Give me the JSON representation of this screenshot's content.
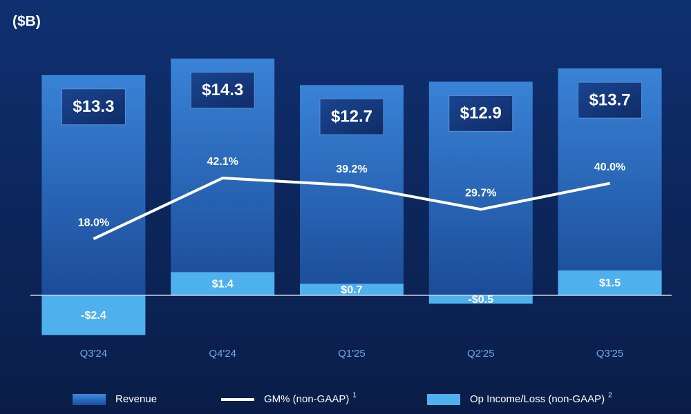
{
  "chart_data": {
    "type": "bar-line",
    "title": "($B)",
    "categories": [
      "Q3'24",
      "Q4'24",
      "Q1'25",
      "Q2'25",
      "Q3'25"
    ],
    "series": [
      {
        "name": "Revenue",
        "type": "bar",
        "color": "#2a6fc9",
        "values": [
          13.3,
          14.3,
          12.7,
          12.9,
          13.7
        ],
        "value_labels": [
          "$13.3",
          "$14.3",
          "$12.7",
          "$12.9",
          "$13.7"
        ]
      },
      {
        "name": "GM% (non-GAAP)",
        "footnote": "1",
        "type": "line",
        "axis": "y2",
        "color": "#ffffff",
        "values": [
          18.0,
          42.1,
          39.2,
          29.7,
          40.0
        ],
        "value_labels": [
          "18.0%",
          "42.1%",
          "39.2%",
          "29.7%",
          "40.0%"
        ]
      },
      {
        "name": "Op Income/Loss (non-GAAP)",
        "footnote": "2",
        "type": "bar",
        "color": "#4fb0ee",
        "values": [
          -2.4,
          1.4,
          0.7,
          -0.5,
          1.5
        ],
        "value_labels": [
          "-$2.4",
          "$1.4",
          "$0.7",
          "-$0.5",
          "$1.5"
        ]
      }
    ],
    "ylim": [
      -3,
      15
    ],
    "y2lim": [
      -24,
      94
    ]
  }
}
